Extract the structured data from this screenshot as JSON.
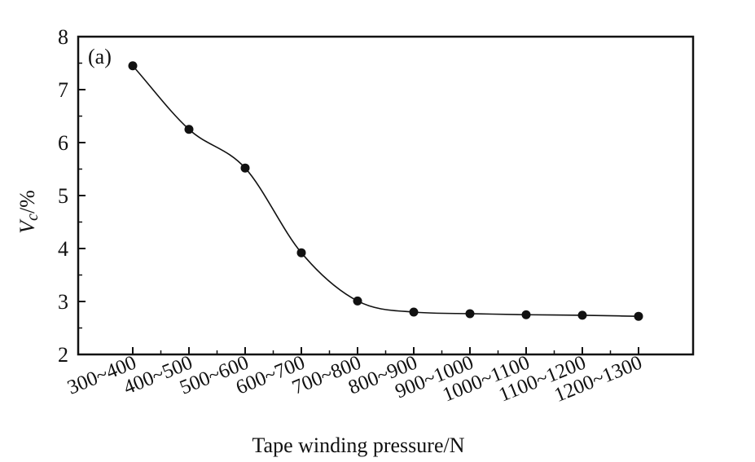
{
  "chart_data": {
    "type": "line",
    "panel_label": "(a)",
    "xlabel": "Tape winding pressure/N",
    "ylabel": "Vc/%",
    "ylabel_main": "V",
    "ylabel_sub": "c",
    "ylabel_unit": "/%",
    "categories": [
      "300~400",
      "400~500",
      "500~600",
      "600~700",
      "700~800",
      "800~900",
      "900~1000",
      "1000~1100",
      "1100~1200",
      "1200~1300"
    ],
    "series": [
      {
        "values": [
          7.45,
          6.25,
          5.52,
          3.92,
          3.01,
          2.8,
          2.77,
          2.75,
          2.74,
          2.72
        ]
      }
    ],
    "ylim": [
      2,
      8
    ],
    "yticks": [
      "2",
      "3",
      "4",
      "5",
      "6",
      "7",
      "8"
    ],
    "grid": false,
    "markers": "filled-circle",
    "line_style": "smooth"
  }
}
